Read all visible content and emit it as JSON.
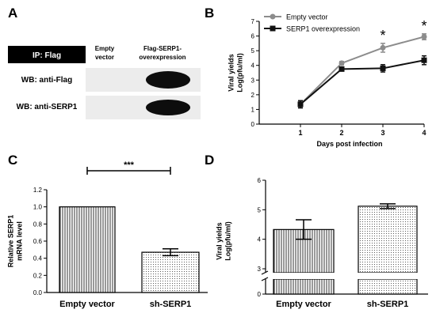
{
  "panels": {
    "A": {
      "letter": "A"
    },
    "B": {
      "letter": "B"
    },
    "C": {
      "letter": "C"
    },
    "D": {
      "letter": "D"
    }
  },
  "blot": {
    "ip_label": "IP: Flag",
    "columns": [
      "Empty\nvector",
      "Flag-SERP1-\noverexpression"
    ],
    "rows": [
      {
        "label": "WB: anti-Flag",
        "band_in": [
          false,
          true
        ]
      },
      {
        "label": "WB: anti-SERP1",
        "band_in": [
          false,
          true
        ]
      }
    ]
  },
  "chart_data": [
    {
      "panel": "B",
      "type": "line",
      "xlabel": "Days post infection",
      "ylabel": "Viral yields\nLog(pfu/ml)",
      "x": [
        1,
        2,
        3,
        4
      ],
      "xlim": [
        0,
        4
      ],
      "ylim": [
        0,
        7
      ],
      "yticks": [
        0,
        1,
        2,
        3,
        4,
        5,
        6,
        7
      ],
      "series": [
        {
          "name": "Empty vector",
          "color": "#8c8c8c",
          "marker": "circle",
          "values": [
            1.35,
            4.15,
            5.2,
            5.95
          ],
          "errors": [
            0.2,
            0.12,
            0.3,
            0.2
          ]
        },
        {
          "name": "SERP1 overexpression",
          "color": "#111111",
          "marker": "square",
          "values": [
            1.35,
            3.75,
            3.8,
            4.35
          ],
          "errors": [
            0.25,
            0.1,
            0.25,
            0.3
          ]
        }
      ],
      "annotations": [
        {
          "x": 3,
          "text": "*"
        },
        {
          "x": 4,
          "text": "*"
        }
      ],
      "legend": "top-left"
    },
    {
      "panel": "C",
      "type": "bar",
      "categories": [
        "Empty vector",
        "sh-SERP1"
      ],
      "values": [
        1.0,
        0.47
      ],
      "errors": [
        0,
        0.04
      ],
      "patterns": [
        "vertical-lines",
        "dots"
      ],
      "ylabel": "Relative SERP1\nmRNA level",
      "ylim": [
        0,
        1.2
      ],
      "yticks": [
        0.0,
        0.2,
        0.4,
        0.6,
        0.8,
        1.0,
        1.2
      ],
      "significance": "***"
    },
    {
      "panel": "D",
      "type": "bar",
      "categories": [
        "Empty vector",
        "sh-SERP1"
      ],
      "values": [
        4.33,
        5.12
      ],
      "errors": [
        0.33,
        0.08
      ],
      "patterns": [
        "vertical-lines",
        "dots"
      ],
      "ylabel": "Viral yields\nLog(pfu/ml)",
      "ylim": [
        0,
        6
      ],
      "axis_break": [
        0,
        3
      ],
      "yticks": [
        0,
        3,
        4,
        5,
        6
      ]
    }
  ]
}
